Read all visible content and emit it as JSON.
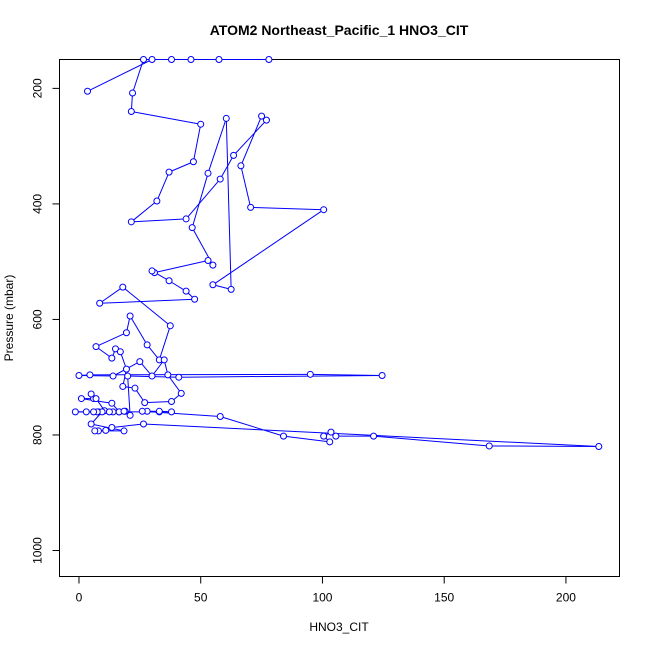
{
  "chart_data": {
    "type": "line",
    "title": "ATOM2 Northeast_Pacific_1 HNO3_CIT",
    "xlabel": "HNO3_CIT",
    "ylabel": "Pressure (mbar)",
    "xlim": [
      -8,
      222
    ],
    "ylim": [
      1045,
      150
    ],
    "y_reversed": true,
    "x_ticks": [
      0,
      50,
      100,
      150,
      200
    ],
    "y_ticks": [
      200,
      400,
      600,
      800,
      1000
    ],
    "grid": false,
    "legend": "none",
    "series_color": "#0000ff",
    "marker": "open-circle",
    "series": [
      {
        "points": [
          [
            3.5,
            205
          ],
          [
            30,
            150
          ],
          [
            46,
            150
          ],
          [
            57.5,
            150
          ],
          [
            78,
            150
          ],
          [
            38,
            150
          ],
          [
            26.5,
            150
          ],
          [
            22,
            208
          ],
          [
            21.5,
            240
          ],
          [
            50,
            262
          ],
          [
            47,
            327
          ],
          [
            37,
            345
          ],
          [
            32,
            395
          ],
          [
            21.5,
            431
          ],
          [
            44,
            426
          ],
          [
            58,
            357
          ],
          [
            63.5,
            316
          ],
          [
            77,
            255
          ],
          [
            75,
            248
          ],
          [
            66.5,
            334
          ],
          [
            70.5,
            406
          ],
          [
            100.5,
            410
          ],
          [
            55,
            540
          ],
          [
            62.5,
            548
          ],
          [
            60.5,
            252
          ],
          [
            53,
            347
          ],
          [
            46.5,
            441
          ],
          [
            55,
            506
          ],
          [
            53,
            498
          ],
          [
            31,
            519
          ],
          [
            30,
            516
          ],
          [
            37,
            533
          ],
          [
            44,
            551
          ],
          [
            47.5,
            565
          ],
          [
            8.5,
            572
          ],
          [
            18,
            544
          ],
          [
            37.5,
            611
          ],
          [
            33,
            670
          ],
          [
            28,
            644
          ],
          [
            21,
            594
          ],
          [
            19.5,
            623
          ],
          [
            7,
            647
          ],
          [
            13.5,
            667
          ],
          [
            15,
            651
          ],
          [
            17,
            656
          ],
          [
            19.5,
            686
          ],
          [
            18,
            716
          ],
          [
            23,
            719
          ],
          [
            27,
            744
          ],
          [
            38,
            742
          ],
          [
            42,
            728
          ],
          [
            36.5,
            696
          ],
          [
            35,
            670
          ],
          [
            30,
            698
          ],
          [
            25,
            673
          ],
          [
            14,
            698
          ],
          [
            0,
            697
          ],
          [
            4.5,
            696
          ],
          [
            95,
            695
          ],
          [
            124.5,
            697
          ],
          [
            41,
            700
          ],
          [
            20,
            698
          ],
          [
            21,
            766
          ],
          [
            19,
            759
          ],
          [
            16.5,
            760
          ],
          [
            13.5,
            745
          ],
          [
            1,
            737
          ],
          [
            6,
            737
          ],
          [
            5,
            729
          ],
          [
            7,
            737
          ],
          [
            10.5,
            758
          ],
          [
            14,
            760
          ],
          [
            -1.5,
            760
          ],
          [
            3,
            760
          ],
          [
            8,
            760
          ],
          [
            12.5,
            760
          ],
          [
            33,
            760
          ],
          [
            38,
            760
          ],
          [
            33,
            759
          ],
          [
            28,
            759
          ],
          [
            26,
            759
          ],
          [
            58,
            768
          ],
          [
            84,
            802
          ],
          [
            103,
            812
          ],
          [
            100.5,
            802
          ],
          [
            103.5,
            795
          ],
          [
            105.5,
            802
          ],
          [
            121,
            802
          ],
          [
            168.5,
            819
          ],
          [
            213.5,
            820
          ],
          [
            26.5,
            781
          ],
          [
            13.5,
            787
          ],
          [
            11,
            792
          ],
          [
            8,
            793
          ],
          [
            6.5,
            793
          ],
          [
            18.5,
            793
          ],
          [
            5,
            781
          ],
          [
            9.5,
            760
          ],
          [
            7.5,
            760
          ],
          [
            6,
            760
          ],
          [
            16.5,
            760
          ],
          [
            18.5,
            759
          ]
        ]
      }
    ]
  }
}
